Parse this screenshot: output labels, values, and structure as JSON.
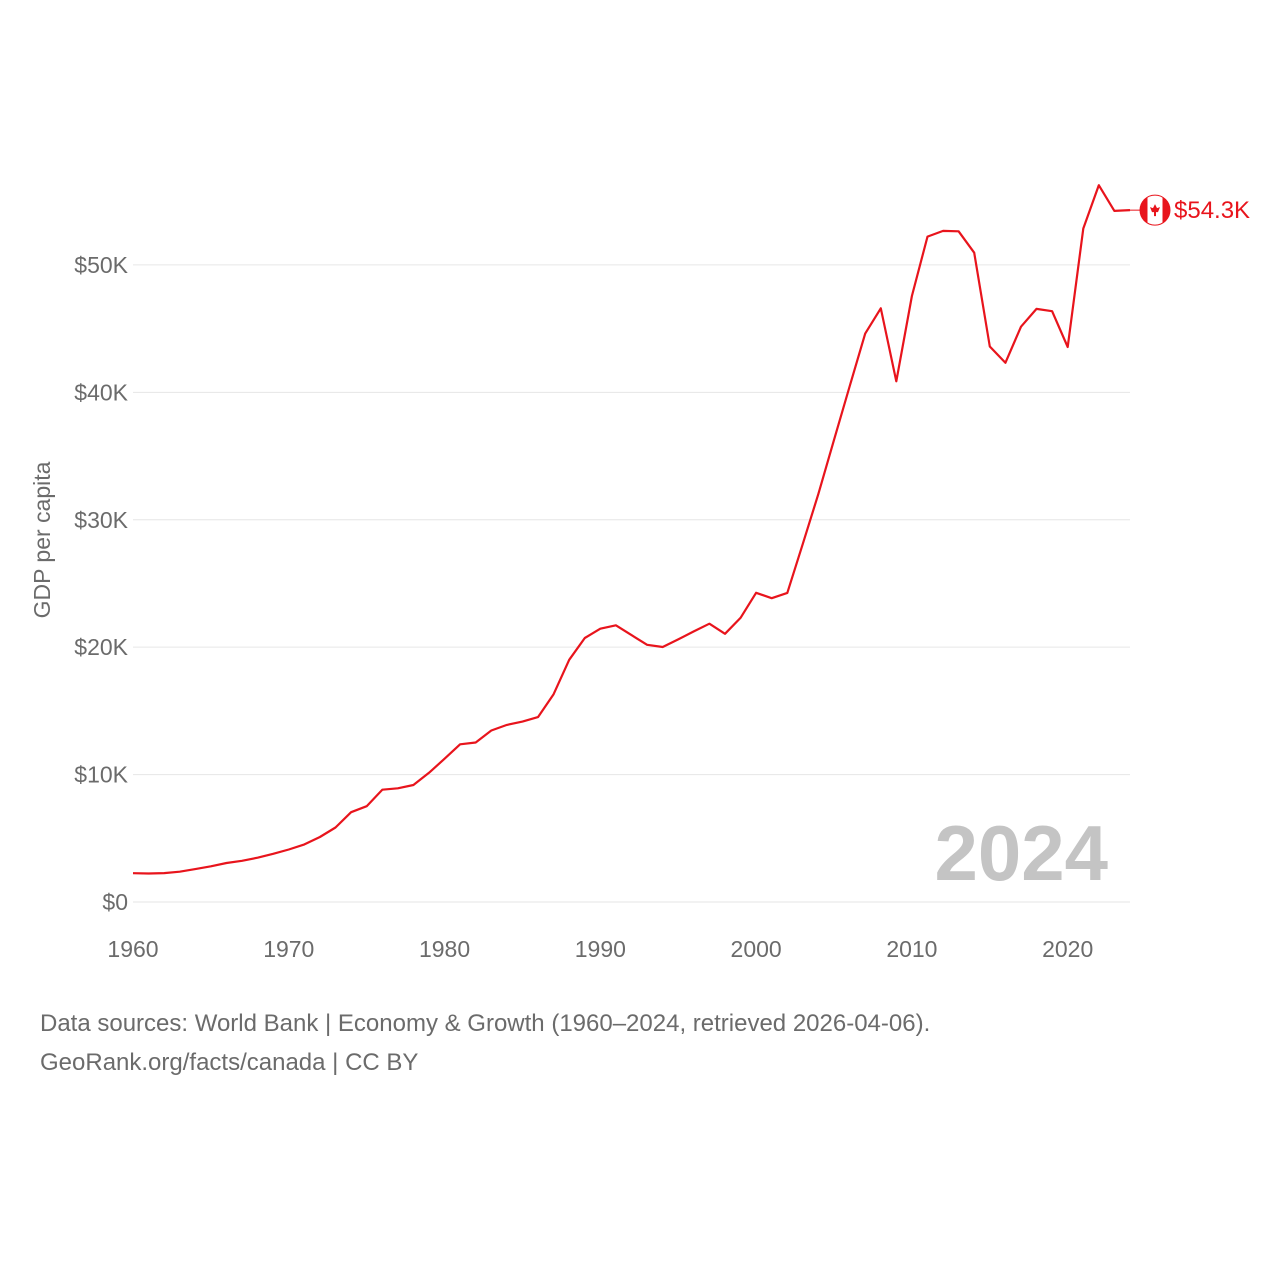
{
  "chart_data": {
    "type": "line",
    "ylabel": "GDP per capita",
    "xlabel": "",
    "xlim": [
      1960,
      2024
    ],
    "ylim": [
      0,
      58000
    ],
    "y_ticks": [
      0,
      10000,
      20000,
      30000,
      40000,
      50000
    ],
    "y_tick_labels": [
      "$0",
      "$10K",
      "$20K",
      "$30K",
      "$40K",
      "$50K"
    ],
    "x_ticks": [
      1960,
      1970,
      1980,
      1990,
      2000,
      2010,
      2020
    ],
    "x_tick_labels": [
      "1960",
      "1970",
      "1980",
      "1990",
      "2000",
      "2010",
      "2020"
    ],
    "year_label": "2024",
    "series": [
      {
        "name": "Canada",
        "color": "#e8141c",
        "end_label": "$54.3K",
        "x": [
          1960,
          1961,
          1962,
          1963,
          1964,
          1965,
          1966,
          1967,
          1968,
          1969,
          1970,
          1971,
          1972,
          1973,
          1974,
          1975,
          1976,
          1977,
          1978,
          1979,
          1980,
          1981,
          1982,
          1983,
          1984,
          1985,
          1986,
          1987,
          1988,
          1989,
          1990,
          1991,
          1992,
          1993,
          1994,
          1995,
          1996,
          1997,
          1998,
          1999,
          2000,
          2001,
          2002,
          2003,
          2004,
          2005,
          2006,
          2007,
          2008,
          2009,
          2010,
          2011,
          2012,
          2013,
          2014,
          2015,
          2016,
          2017,
          2018,
          2019,
          2020,
          2021,
          2022,
          2023,
          2024
        ],
        "values": [
          2260,
          2240,
          2270,
          2380,
          2580,
          2800,
          3060,
          3230,
          3480,
          3780,
          4120,
          4520,
          5100,
          5850,
          7050,
          7520,
          8810,
          8920,
          9180,
          10140,
          11250,
          12380,
          12520,
          13460,
          13900,
          14160,
          14510,
          16310,
          19010,
          20720,
          21450,
          21720,
          20950,
          20190,
          20010,
          20610,
          21240,
          21840,
          21050,
          22300,
          24270,
          23840,
          24260,
          28130,
          32040,
          36270,
          40460,
          44610,
          46600,
          40870,
          47560,
          52220,
          52670,
          52640,
          50960,
          43600,
          42320,
          45150,
          46550,
          46370,
          43560,
          52860,
          56260,
          54240,
          54300
        ]
      }
    ]
  },
  "footer": {
    "source_line": "Data sources: World Bank | Economy & Growth (1960–2024, retrieved 2026-04-06).",
    "credit_line": "GeoRank.org/facts/canada | CC BY"
  },
  "colors": {
    "line": "#e8141c",
    "grid": "#e6e6e6",
    "text": "#6b6b6b",
    "watermark": "#c4c4c4"
  }
}
